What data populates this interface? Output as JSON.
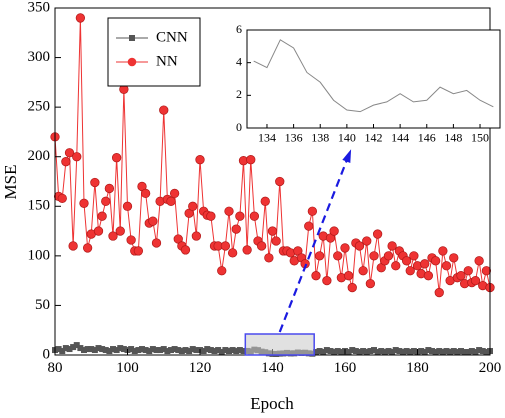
{
  "chart_data": [
    {
      "type": "line",
      "xlabel": "Epoch",
      "ylabel": "MSE",
      "x": [
        80,
        81,
        82,
        83,
        84,
        85,
        86,
        87,
        88,
        89,
        90,
        91,
        92,
        93,
        94,
        95,
        96,
        97,
        98,
        99,
        100,
        101,
        102,
        103,
        104,
        105,
        106,
        107,
        108,
        109,
        110,
        111,
        112,
        113,
        114,
        115,
        116,
        117,
        118,
        119,
        120,
        121,
        122,
        123,
        124,
        125,
        126,
        127,
        128,
        129,
        130,
        131,
        132,
        133,
        134,
        135,
        136,
        137,
        138,
        139,
        140,
        141,
        142,
        143,
        144,
        145,
        146,
        147,
        148,
        149,
        150,
        151,
        152,
        153,
        154,
        155,
        156,
        157,
        158,
        159,
        160,
        161,
        162,
        163,
        164,
        165,
        166,
        167,
        168,
        169,
        170,
        171,
        172,
        173,
        174,
        175,
        176,
        177,
        178,
        179,
        180,
        181,
        182,
        183,
        184,
        185,
        186,
        187,
        188,
        189,
        190,
        191,
        192,
        193,
        194,
        195,
        196,
        197,
        198,
        199,
        200
      ],
      "series": [
        {
          "name": "CNN",
          "color": "#555555",
          "marker": "square",
          "values": [
            5,
            6,
            4,
            7,
            6,
            8,
            10,
            7,
            5,
            6,
            6,
            5,
            7,
            6,
            5,
            4,
            6,
            5,
            7,
            6,
            5,
            6,
            4,
            5,
            6,
            5,
            4,
            6,
            5,
            5,
            6,
            4,
            5,
            6,
            5,
            4,
            5,
            4,
            6,
            5,
            5,
            4,
            6,
            5,
            4,
            5,
            3,
            5,
            4,
            5,
            4,
            5,
            4,
            4.1,
            3.7,
            5.4,
            4.9,
            3.4,
            2.8,
            1.7,
            1.1,
            1.0,
            1.4,
            1.6,
            2.1,
            1.6,
            1.7,
            2.5,
            2.1,
            2.3,
            1.7,
            1.3,
            3,
            4,
            3,
            5,
            4,
            3,
            4,
            3,
            4,
            3,
            5,
            4,
            3,
            4,
            3,
            4,
            5,
            3,
            4,
            3,
            4,
            3,
            5,
            4,
            3,
            4,
            3,
            4,
            3,
            4,
            3,
            5,
            4,
            3,
            4,
            3,
            4,
            3,
            4,
            3,
            4,
            3,
            3,
            4,
            3,
            5,
            4,
            3,
            4
          ]
        },
        {
          "name": "NN",
          "color": "#ee3333",
          "marker": "circle",
          "values": [
            220,
            160,
            158,
            195,
            204,
            110,
            200,
            340,
            153,
            108,
            122,
            174,
            125,
            140,
            155,
            168,
            120,
            199,
            125,
            268,
            150,
            116,
            105,
            105,
            170,
            163,
            133,
            135,
            113,
            155,
            247,
            157,
            155,
            163,
            117,
            110,
            106,
            143,
            150,
            120,
            197,
            145,
            141,
            140,
            110,
            110,
            85,
            110,
            145,
            103,
            127,
            140,
            196,
            106,
            197,
            140,
            115,
            110,
            155,
            98,
            125,
            115,
            175,
            105,
            105,
            103,
            95,
            105,
            98,
            92,
            130,
            145,
            80,
            100,
            120,
            75,
            118,
            125,
            100,
            78,
            108,
            80,
            68,
            113,
            110,
            85,
            115,
            72,
            100,
            122,
            88,
            95,
            100,
            110,
            90,
            105,
            100,
            95,
            85,
            100,
            90,
            82,
            92,
            80,
            98,
            95,
            63,
            105,
            90,
            75,
            98,
            78,
            80,
            72,
            85,
            73,
            75,
            95,
            70,
            85,
            68
          ]
        }
      ],
      "xlim": [
        80,
        200
      ],
      "ylim": [
        0,
        350
      ],
      "xticks": [
        80,
        100,
        120,
        140,
        160,
        180,
        200
      ],
      "yticks": [
        0,
        50,
        100,
        150,
        200,
        250,
        300,
        350
      ],
      "legend": "upper left"
    },
    {
      "type": "line",
      "x": [
        133,
        134,
        135,
        136,
        137,
        138,
        139,
        140,
        141,
        142,
        143,
        144,
        145,
        146,
        147,
        148,
        149,
        150,
        151
      ],
      "values": [
        4.1,
        3.7,
        5.4,
        4.9,
        3.4,
        2.8,
        1.7,
        1.1,
        1.0,
        1.4,
        1.6,
        2.1,
        1.6,
        1.7,
        2.5,
        2.1,
        2.3,
        1.7,
        1.3
      ],
      "color": "#888888",
      "xlim": [
        132.5,
        151.5
      ],
      "ylim": [
        0,
        6
      ],
      "xticks": [
        134,
        136,
        138,
        140,
        142,
        144,
        146,
        148,
        150
      ],
      "yticks": [
        0,
        2,
        4,
        6
      ]
    }
  ]
}
